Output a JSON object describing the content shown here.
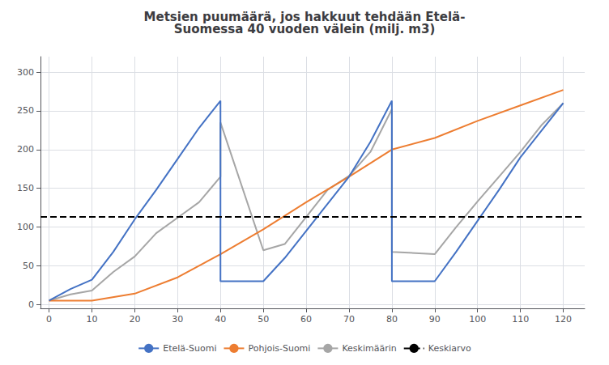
{
  "chart_data": {
    "type": "line",
    "title": "Metsien puumäärä, jos hakkuut tehdään Etelä-\nSuomessa 40 vuoden välein (milj. m3)",
    "xlim": [
      -2,
      125
    ],
    "ylim": [
      -5,
      320
    ],
    "xticks": [
      0,
      10,
      20,
      30,
      40,
      50,
      60,
      70,
      80,
      90,
      100,
      110,
      120
    ],
    "yticks": [
      0,
      50,
      100,
      150,
      200,
      250,
      300
    ],
    "grid": true,
    "legend": "bottom",
    "series": [
      {
        "name": "Etelä-Suomi",
        "color": "#4472c4",
        "x": [
          0,
          5,
          10,
          15,
          20,
          25,
          30,
          35,
          40,
          40,
          50,
          55,
          60,
          65,
          70,
          75,
          80,
          80,
          90,
          95,
          100,
          105,
          110,
          115,
          120
        ],
        "values": [
          5,
          20,
          32,
          68,
          110,
          148,
          188,
          228,
          263,
          30,
          30,
          60,
          95,
          130,
          165,
          210,
          263,
          30,
          30,
          68,
          108,
          148,
          190,
          225,
          260
        ]
      },
      {
        "name": "Pohjois-Suomi",
        "color": "#ed7d31",
        "x": [
          0,
          10,
          20,
          30,
          40,
          50,
          60,
          70,
          80,
          90,
          100,
          110,
          120
        ],
        "values": [
          5,
          5,
          14,
          35,
          65,
          97,
          132,
          165,
          200,
          215,
          237,
          257,
          277
        ]
      },
      {
        "name": "Keskimäärin",
        "color": "#a6a6a6",
        "x": [
          0,
          5,
          10,
          15,
          20,
          25,
          30,
          35,
          40,
          40,
          50,
          55,
          60,
          65,
          70,
          75,
          80,
          80,
          90,
          95,
          100,
          105,
          110,
          115,
          120
        ],
        "values": [
          5,
          13,
          18,
          42,
          62,
          92,
          112,
          132,
          165,
          235,
          70,
          78,
          113,
          148,
          166,
          197,
          252,
          68,
          65,
          100,
          133,
          165,
          197,
          232,
          260
        ]
      },
      {
        "name": "Keskiarvo",
        "color": "#000000",
        "type": "hline",
        "line_style": "dashed",
        "values": [
          113
        ]
      }
    ]
  }
}
